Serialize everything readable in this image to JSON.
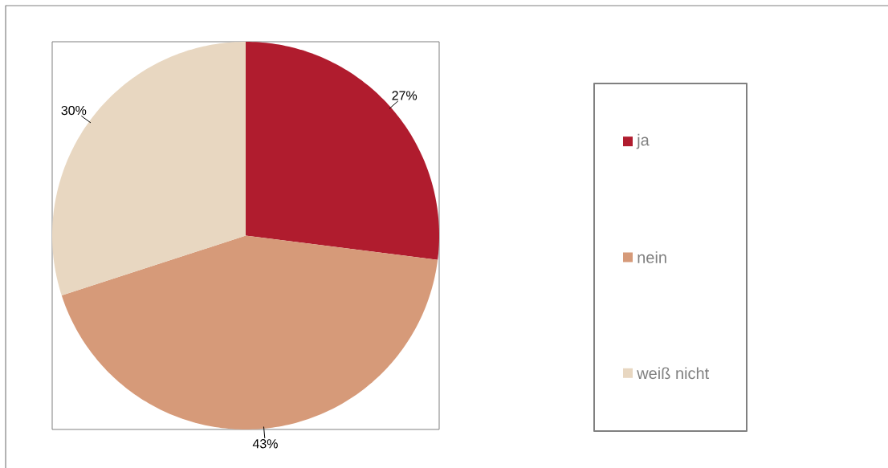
{
  "chart_data": {
    "type": "pie",
    "categories": [
      "ja",
      "nein",
      "weiß nicht"
    ],
    "values": [
      27,
      43,
      30
    ],
    "value_labels": [
      "27%",
      "43%",
      "30%"
    ],
    "colors": [
      "#b01c2e",
      "#d69a79",
      "#e8d7c1"
    ],
    "legend": "right"
  }
}
